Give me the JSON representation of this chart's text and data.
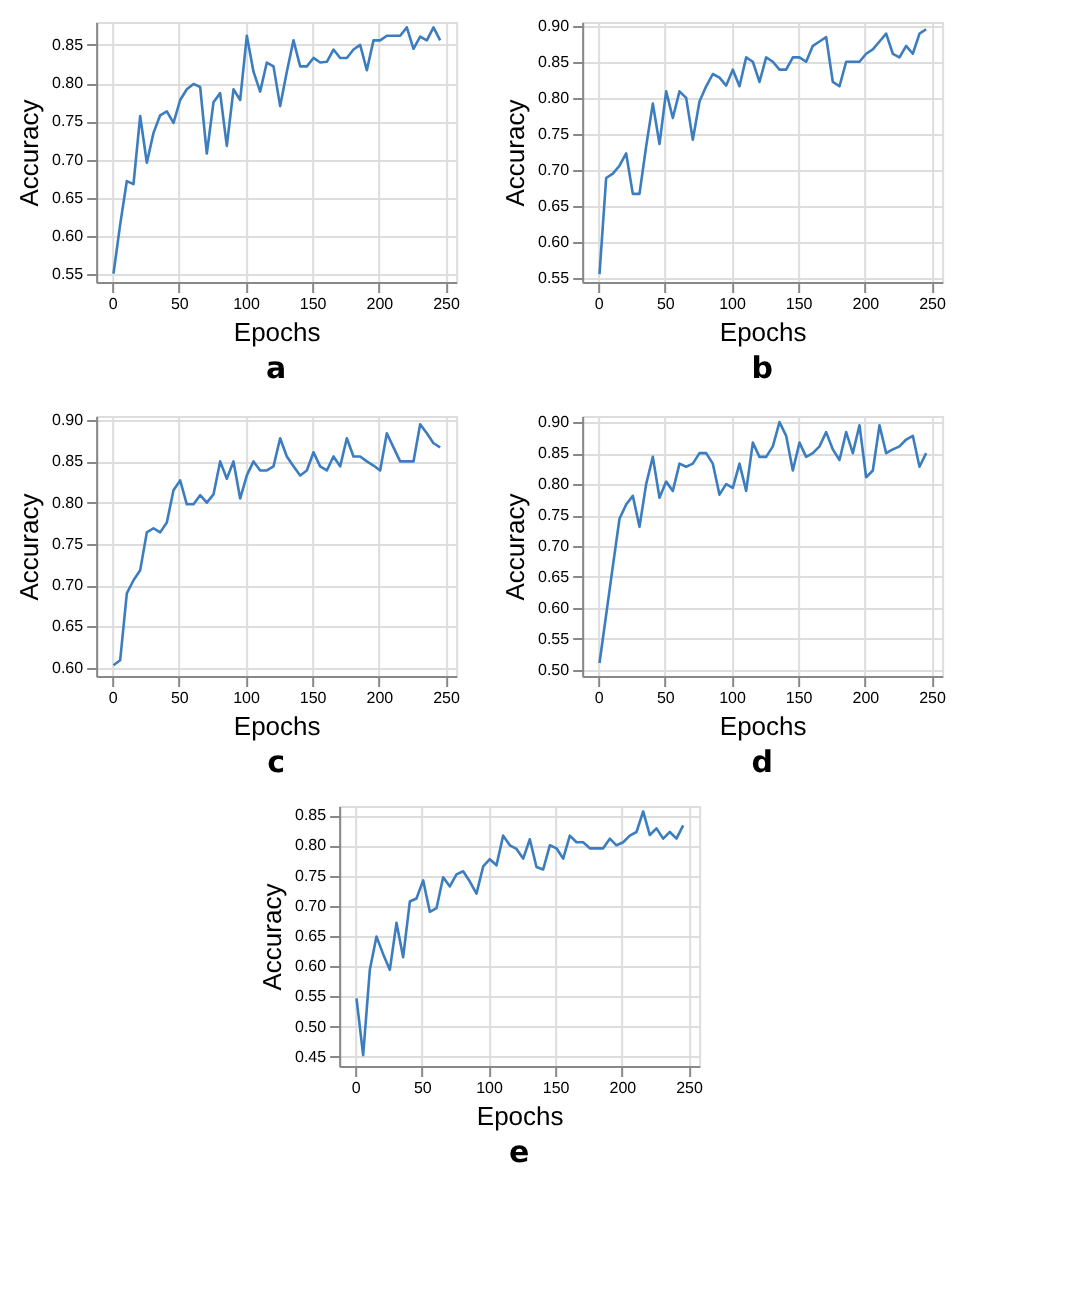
{
  "chart_data": [
    {
      "type": "line",
      "title": "a",
      "xlabel": "Epochs",
      "ylabel": "Accuracy",
      "color": "#3b7dbf",
      "grid": true,
      "xlim": [
        -12,
        258
      ],
      "xticks": [
        0,
        50,
        100,
        150,
        200,
        250
      ],
      "ylim": [
        0.54,
        0.88
      ],
      "yticks": [
        0.55,
        {
          "value": 0.6,
          "label": "0.60"
        },
        0.65,
        {
          "value": 0.7,
          "label": "0.70"
        },
        0.75,
        {
          "value": 0.8,
          "label": "0.80"
        },
        0.85
      ],
      "x": [
        1,
        6,
        11,
        16,
        21,
        26,
        31,
        36,
        41,
        46,
        51,
        56,
        61,
        66,
        71,
        76,
        81,
        86,
        91,
        96,
        101,
        106,
        111,
        116,
        121,
        126,
        131,
        136,
        141,
        146,
        151,
        156,
        161,
        166,
        171,
        176,
        181,
        186,
        191,
        196,
        201,
        206,
        211,
        216,
        221,
        226,
        231,
        236,
        241,
        246
      ],
      "values": [
        0.551,
        0.615,
        0.672,
        0.668,
        0.757,
        0.696,
        0.735,
        0.758,
        0.763,
        0.748,
        0.778,
        0.792,
        0.799,
        0.795,
        0.708,
        0.775,
        0.787,
        0.718,
        0.792,
        0.778,
        0.862,
        0.815,
        0.789,
        0.827,
        0.822,
        0.77,
        0.815,
        0.856,
        0.822,
        0.822,
        0.833,
        0.827,
        0.828,
        0.844,
        0.833,
        0.833,
        0.844,
        0.85,
        0.817,
        0.856,
        0.856,
        0.862,
        0.862,
        0.862,
        0.873,
        0.845,
        0.861,
        0.856,
        0.873,
        0.856
      ]
    },
    {
      "type": "line",
      "title": "b",
      "xlabel": "Epochs",
      "ylabel": "Accuracy",
      "color": "#3b7dbf",
      "grid": true,
      "xlim": [
        -12,
        258
      ],
      "xticks": [
        0,
        50,
        100,
        150,
        200,
        250
      ],
      "ylim": [
        0.545,
        0.905
      ],
      "yticks": [
        0.55,
        {
          "value": 0.6,
          "label": "0.60"
        },
        0.65,
        {
          "value": 0.7,
          "label": "0.70"
        },
        0.75,
        {
          "value": 0.8,
          "label": "0.80"
        },
        0.85,
        {
          "value": 0.9,
          "label": "0.90"
        }
      ],
      "x": [
        1,
        6,
        11,
        16,
        21,
        26,
        31,
        36,
        41,
        46,
        51,
        56,
        61,
        66,
        71,
        76,
        81,
        86,
        91,
        96,
        101,
        106,
        111,
        116,
        121,
        126,
        131,
        136,
        141,
        146,
        151,
        156,
        161,
        166,
        171,
        176,
        181,
        186,
        191,
        196,
        201,
        206,
        211,
        216,
        221,
        226,
        231,
        236,
        241,
        246
      ],
      "values": [
        0.556,
        0.689,
        0.695,
        0.706,
        0.723,
        0.667,
        0.667,
        0.733,
        0.792,
        0.736,
        0.809,
        0.772,
        0.809,
        0.8,
        0.742,
        0.795,
        0.816,
        0.833,
        0.828,
        0.817,
        0.839,
        0.816,
        0.856,
        0.85,
        0.822,
        0.856,
        0.85,
        0.839,
        0.839,
        0.856,
        0.856,
        0.85,
        0.872,
        0.878,
        0.884,
        0.822,
        0.816,
        0.85,
        0.85,
        0.85,
        0.861,
        0.867,
        0.878,
        0.889,
        0.861,
        0.856,
        0.872,
        0.861,
        0.889,
        0.895
      ]
    },
    {
      "type": "line",
      "title": "c",
      "xlabel": "Epochs",
      "ylabel": "Accuracy",
      "color": "#3b7dbf",
      "grid": true,
      "xlim": [
        -12,
        258
      ],
      "xticks": [
        0,
        50,
        100,
        150,
        200,
        250
      ],
      "ylim": [
        0.59,
        0.905
      ],
      "yticks": [
        {
          "value": 0.6,
          "label": "0.60"
        },
        0.65,
        {
          "value": 0.7,
          "label": "0.70"
        },
        0.75,
        {
          "value": 0.8,
          "label": "0.80"
        },
        0.85,
        {
          "value": 0.9,
          "label": "0.90"
        }
      ],
      "x": [
        1,
        6,
        11,
        16,
        21,
        26,
        31,
        36,
        41,
        46,
        51,
        56,
        61,
        66,
        71,
        76,
        81,
        86,
        91,
        96,
        101,
        106,
        111,
        116,
        121,
        126,
        131,
        136,
        141,
        146,
        151,
        156,
        161,
        166,
        171,
        176,
        181,
        186,
        191,
        196,
        201,
        206,
        211,
        216,
        221,
        226,
        231,
        236,
        241,
        246
      ],
      "values": [
        0.603,
        0.609,
        0.69,
        0.706,
        0.718,
        0.764,
        0.769,
        0.764,
        0.776,
        0.815,
        0.827,
        0.798,
        0.798,
        0.809,
        0.8,
        0.81,
        0.85,
        0.829,
        0.85,
        0.805,
        0.833,
        0.85,
        0.839,
        0.839,
        0.844,
        0.878,
        0.856,
        0.844,
        0.833,
        0.839,
        0.861,
        0.844,
        0.839,
        0.856,
        0.844,
        0.878,
        0.856,
        0.856,
        0.85,
        0.845,
        0.839,
        0.884,
        0.867,
        0.85,
        0.85,
        0.85,
        0.895,
        0.884,
        0.872,
        0.867
      ]
    },
    {
      "type": "line",
      "title": "d",
      "xlabel": "Epochs",
      "ylabel": "Accuracy",
      "color": "#3b7dbf",
      "grid": true,
      "xlim": [
        -12,
        258
      ],
      "xticks": [
        0,
        50,
        100,
        150,
        200,
        250
      ],
      "ylim": [
        0.49,
        0.91
      ],
      "yticks": [
        {
          "value": 0.5,
          "label": "0.50"
        },
        0.55,
        {
          "value": 0.6,
          "label": "0.60"
        },
        0.65,
        {
          "value": 0.7,
          "label": "0.70"
        },
        0.75,
        {
          "value": 0.8,
          "label": "0.80"
        },
        0.85,
        {
          "value": 0.9,
          "label": "0.90"
        }
      ],
      "x": [
        1,
        6,
        11,
        16,
        21,
        26,
        31,
        36,
        41,
        46,
        51,
        56,
        61,
        66,
        71,
        76,
        81,
        86,
        91,
        96,
        101,
        106,
        111,
        116,
        121,
        126,
        131,
        136,
        141,
        146,
        151,
        156,
        161,
        166,
        171,
        176,
        181,
        186,
        191,
        196,
        201,
        206,
        211,
        216,
        221,
        226,
        231,
        236,
        241,
        246
      ],
      "values": [
        0.511,
        0.589,
        0.667,
        0.744,
        0.767,
        0.781,
        0.731,
        0.8,
        0.844,
        0.778,
        0.804,
        0.789,
        0.833,
        0.828,
        0.833,
        0.85,
        0.85,
        0.833,
        0.783,
        0.8,
        0.794,
        0.833,
        0.789,
        0.867,
        0.844,
        0.844,
        0.861,
        0.9,
        0.878,
        0.822,
        0.867,
        0.844,
        0.85,
        0.861,
        0.884,
        0.856,
        0.839,
        0.884,
        0.85,
        0.895,
        0.811,
        0.822,
        0.895,
        0.85,
        0.856,
        0.861,
        0.872,
        0.878,
        0.828,
        0.85
      ]
    },
    {
      "type": "line",
      "title": "e",
      "xlabel": "Epochs",
      "ylabel": "Accuracy",
      "color": "#3b7dbf",
      "grid": true,
      "xlim": [
        -12,
        258
      ],
      "xticks": [
        0,
        50,
        100,
        150,
        200,
        250
      ],
      "ylim": [
        0.435,
        0.865
      ],
      "yticks": [
        0.45,
        {
          "value": 0.5,
          "label": "0.50"
        },
        0.55,
        {
          "value": 0.6,
          "label": "0.60"
        },
        0.65,
        {
          "value": 0.7,
          "label": "0.70"
        },
        0.75,
        {
          "value": 0.8,
          "label": "0.80"
        },
        0.85
      ],
      "x": [
        1,
        6,
        11,
        16,
        21,
        26,
        31,
        36,
        41,
        46,
        51,
        56,
        61,
        66,
        71,
        76,
        81,
        86,
        91,
        96,
        101,
        106,
        111,
        116,
        121,
        126,
        131,
        136,
        141,
        146,
        151,
        156,
        161,
        166,
        171,
        176,
        181,
        186,
        191,
        196,
        201,
        206,
        211,
        216,
        221,
        226,
        231,
        236,
        241,
        246
      ],
      "values": [
        0.547,
        0.453,
        0.594,
        0.649,
        0.62,
        0.594,
        0.672,
        0.615,
        0.707,
        0.712,
        0.742,
        0.69,
        0.696,
        0.747,
        0.732,
        0.752,
        0.757,
        0.74,
        0.72,
        0.765,
        0.777,
        0.767,
        0.816,
        0.8,
        0.794,
        0.778,
        0.81,
        0.764,
        0.76,
        0.8,
        0.795,
        0.778,
        0.816,
        0.805,
        0.805,
        0.795,
        0.795,
        0.795,
        0.811,
        0.8,
        0.805,
        0.816,
        0.822,
        0.856,
        0.817,
        0.828,
        0.811,
        0.822,
        0.811,
        0.833
      ]
    }
  ]
}
